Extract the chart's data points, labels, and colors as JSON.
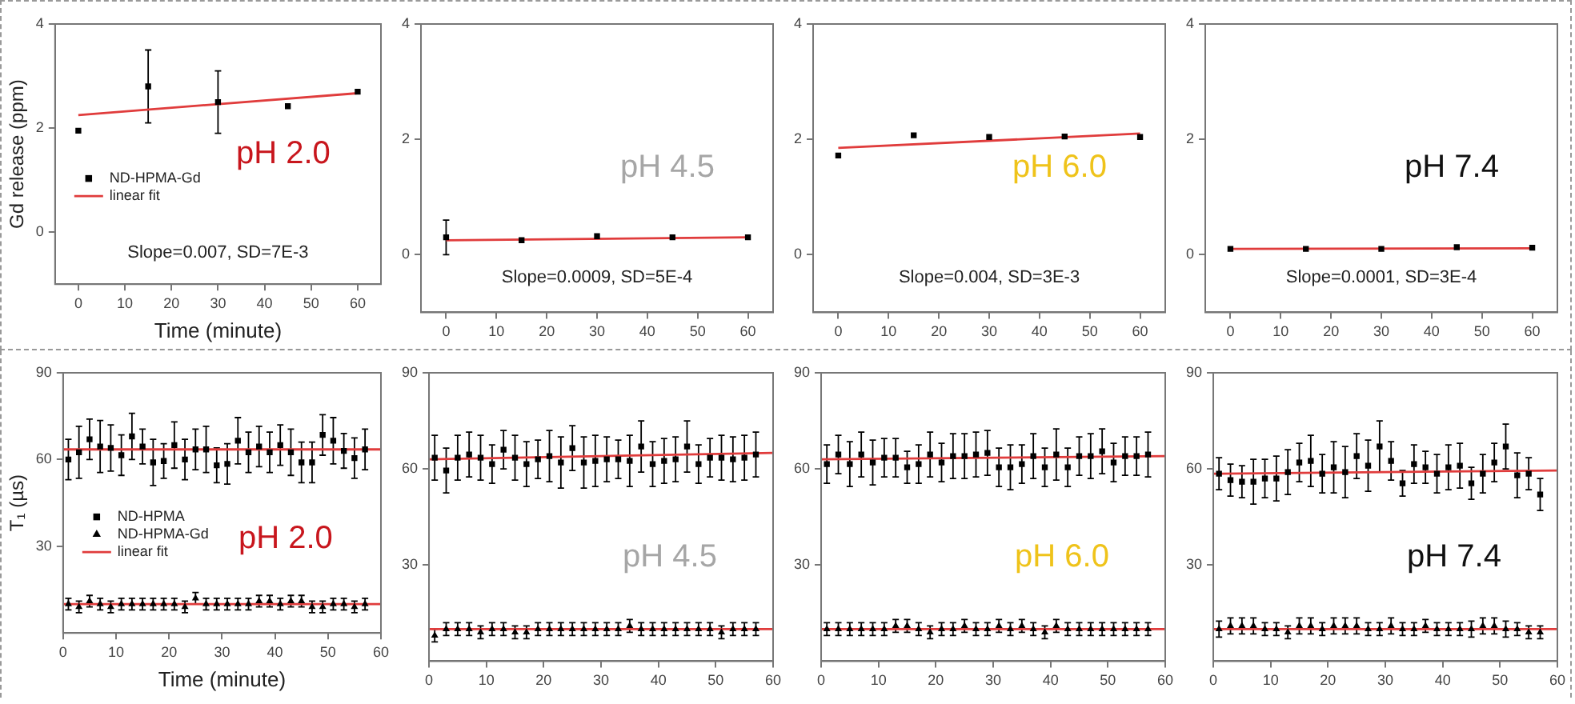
{
  "chart_data": [
    {
      "type": "scatter",
      "xlabel": "Time (minute)",
      "ylabel": "Gd release (ppm)",
      "annotations": [
        "pH 2.0",
        "Slope=0.007, SD=7E-3"
      ],
      "xlim": [
        -5,
        65
      ],
      "xticks": [
        0,
        10,
        20,
        30,
        40,
        50,
        60
      ],
      "ylim": [
        -1,
        4
      ],
      "yticks": [
        0,
        2,
        4
      ],
      "legend": "center left",
      "series": [
        {
          "name": "ND-HPMA-Gd",
          "type": "scatter",
          "marker": "square",
          "color": "#000000",
          "x": [
            0,
            15,
            30,
            45,
            60
          ],
          "values": [
            1.95,
            2.8,
            2.5,
            2.42,
            2.7
          ],
          "errors": [
            null,
            0.7,
            0.6,
            null,
            null
          ]
        },
        {
          "name": "linear fit",
          "type": "line",
          "color": "#e03c3c",
          "x": [
            0,
            60
          ],
          "values": [
            2.25,
            2.67
          ]
        }
      ]
    },
    {
      "type": "scatter",
      "annotations": [
        "pH 4.5",
        "Slope=0.0009, SD=5E-4"
      ],
      "xlim": [
        -5,
        65
      ],
      "xticks": [
        0,
        10,
        20,
        30,
        40,
        50,
        60
      ],
      "ylim": [
        -1,
        4
      ],
      "yticks": [
        0,
        2,
        4
      ],
      "series": [
        {
          "type": "scatter",
          "marker": "square",
          "color": "#000000",
          "x": [
            0,
            15,
            30,
            45,
            60
          ],
          "values": [
            0.3,
            0.25,
            0.32,
            0.3,
            0.3
          ],
          "errors": [
            0.3,
            null,
            null,
            null,
            null
          ]
        },
        {
          "type": "line",
          "color": "#e03c3c",
          "x": [
            0,
            60
          ],
          "values": [
            0.25,
            0.3
          ]
        }
      ]
    },
    {
      "type": "scatter",
      "annotations": [
        "pH 6.0",
        "Slope=0.004, SD=3E-3"
      ],
      "xlim": [
        -5,
        65
      ],
      "xticks": [
        0,
        10,
        20,
        30,
        40,
        50,
        60
      ],
      "ylim": [
        -1,
        4
      ],
      "yticks": [
        0,
        2,
        4
      ],
      "series": [
        {
          "type": "scatter",
          "marker": "square",
          "color": "#000000",
          "x": [
            0,
            15,
            30,
            45,
            60
          ],
          "values": [
            1.72,
            2.07,
            2.04,
            2.05,
            2.04
          ]
        },
        {
          "type": "line",
          "color": "#e03c3c",
          "x": [
            0,
            60
          ],
          "values": [
            1.85,
            2.1
          ]
        }
      ]
    },
    {
      "type": "scatter",
      "annotations": [
        "pH 7.4",
        "Slope=0.0001, SD=3E-4"
      ],
      "xlim": [
        -5,
        65
      ],
      "xticks": [
        0,
        10,
        20,
        30,
        40,
        50,
        60
      ],
      "ylim": [
        -1,
        4
      ],
      "yticks": [
        0,
        2,
        4
      ],
      "series": [
        {
          "type": "scatter",
          "marker": "square",
          "color": "#000000",
          "x": [
            0,
            15,
            30,
            45,
            60
          ],
          "values": [
            0.1,
            0.1,
            0.1,
            0.13,
            0.12
          ]
        },
        {
          "type": "line",
          "color": "#e03c3c",
          "x": [
            0,
            60
          ],
          "values": [
            0.1,
            0.11
          ]
        }
      ]
    },
    {
      "type": "scatter",
      "xlabel": "Time (minute)",
      "ylabel": "T₁ (µs)",
      "annotations": [
        "pH 2.0"
      ],
      "xlim": [
        0,
        60
      ],
      "xticks": [
        0,
        10,
        20,
        30,
        40,
        50,
        60
      ],
      "ylim": [
        0,
        90
      ],
      "yticks": [
        30,
        60,
        90
      ],
      "legend": "center left",
      "x": [
        1,
        3,
        5,
        7,
        9,
        11,
        13,
        15,
        17,
        19,
        21,
        23,
        25,
        27,
        29,
        31,
        33,
        35,
        37,
        39,
        41,
        43,
        45,
        47,
        49,
        51,
        53,
        55,
        57
      ],
      "series": [
        {
          "name": "ND-HPMA",
          "type": "scatter",
          "marker": "square",
          "color": "#000000",
          "values": [
            60,
            62.5,
            67,
            64.5,
            64,
            61.5,
            68,
            64.5,
            59,
            59.5,
            65,
            60,
            63.5,
            63.5,
            58,
            58.5,
            66.5,
            62.5,
            64.5,
            62.5,
            65,
            62.5,
            59,
            59,
            68.5,
            66.5,
            63,
            60.5,
            63.5
          ],
          "errors": [
            7,
            9,
            7,
            9,
            8,
            7,
            8,
            6,
            8,
            6,
            8,
            7,
            7,
            8,
            6,
            7,
            8,
            7,
            7,
            7,
            7,
            8,
            7,
            7,
            7,
            8,
            6,
            7,
            7
          ]
        },
        {
          "name": "ND-HPMA-Gd",
          "type": "scatter",
          "marker": "triangle",
          "color": "#000000",
          "values": [
            10,
            9,
            11,
            10,
            9,
            10,
            10,
            10,
            10,
            10,
            10,
            9,
            12,
            10,
            10,
            10,
            10,
            10,
            11,
            11,
            10,
            11,
            11,
            9,
            9,
            10,
            10,
            9,
            10
          ],
          "errors": [
            2,
            2,
            2,
            2,
            2,
            2,
            2,
            2,
            2,
            2,
            2,
            2,
            2,
            2,
            2,
            2,
            2,
            2,
            2,
            2,
            2,
            2,
            2,
            2,
            2,
            2,
            2,
            2,
            2
          ]
        },
        {
          "name": "linear fit",
          "type": "line",
          "color": "#e03c3c",
          "x": [
            0,
            60
          ],
          "values": [
            63.5,
            63.5
          ]
        },
        {
          "type": "line",
          "color": "#e03c3c",
          "x": [
            0,
            60
          ],
          "values": [
            10,
            10
          ]
        }
      ]
    },
    {
      "type": "scatter",
      "annotations": [
        "pH 4.5"
      ],
      "xlim": [
        0,
        60
      ],
      "xticks": [
        0,
        10,
        20,
        30,
        40,
        50,
        60
      ],
      "ylim": [
        0,
        90
      ],
      "yticks": [
        30,
        60,
        90
      ],
      "x": [
        1,
        3,
        5,
        7,
        9,
        11,
        13,
        15,
        17,
        19,
        21,
        23,
        25,
        27,
        29,
        31,
        33,
        35,
        37,
        39,
        41,
        43,
        45,
        47,
        49,
        51,
        53,
        55,
        57
      ],
      "series": [
        {
          "type": "scatter",
          "marker": "square",
          "color": "#000000",
          "values": [
            63.5,
            59.5,
            63.5,
            64.5,
            63.5,
            61.5,
            66,
            63.5,
            61.5,
            63,
            64,
            62,
            66.5,
            62,
            62.5,
            63,
            63,
            62.5,
            67,
            61.5,
            62.5,
            63,
            67,
            61.5,
            63.5,
            63.5,
            63,
            63.5,
            64.5
          ],
          "errors": [
            7,
            7,
            7,
            7,
            7,
            6,
            6,
            7,
            7,
            6,
            8,
            8,
            7,
            8,
            8,
            7,
            6,
            8,
            8,
            7,
            7,
            7,
            8,
            6,
            6,
            7,
            7,
            7,
            7
          ]
        },
        {
          "type": "scatter",
          "marker": "triangle",
          "color": "#000000",
          "values": [
            8,
            10,
            10,
            10,
            9,
            10,
            10,
            9,
            9,
            10,
            10,
            10,
            10,
            10,
            10,
            10,
            10,
            11,
            10,
            10,
            10,
            10,
            10,
            10,
            10,
            9,
            10,
            10,
            10
          ],
          "errors": [
            2,
            2,
            2,
            2,
            2,
            2,
            2,
            2,
            2,
            2,
            2,
            2,
            2,
            2,
            2,
            2,
            2,
            2,
            2,
            2,
            2,
            2,
            2,
            2,
            2,
            2,
            2,
            2,
            2
          ]
        },
        {
          "type": "line",
          "color": "#e03c3c",
          "x": [
            0,
            60
          ],
          "values": [
            63,
            65
          ]
        },
        {
          "type": "line",
          "color": "#e03c3c",
          "x": [
            0,
            60
          ],
          "values": [
            10,
            10
          ]
        }
      ]
    },
    {
      "type": "scatter",
      "annotations": [
        "pH 6.0"
      ],
      "xlim": [
        0,
        60
      ],
      "xticks": [
        0,
        10,
        20,
        30,
        40,
        50,
        60
      ],
      "ylim": [
        0,
        90
      ],
      "yticks": [
        30,
        60,
        90
      ],
      "x": [
        1,
        3,
        5,
        7,
        9,
        11,
        13,
        15,
        17,
        19,
        21,
        23,
        25,
        27,
        29,
        31,
        33,
        35,
        37,
        39,
        41,
        43,
        45,
        47,
        49,
        51,
        53,
        55,
        57
      ],
      "series": [
        {
          "type": "scatter",
          "marker": "square",
          "color": "#000000",
          "values": [
            61.5,
            64.5,
            61.5,
            64.5,
            62,
            63.5,
            63.5,
            60.5,
            61.5,
            64.5,
            62,
            64,
            64,
            64.5,
            65,
            60.5,
            60.5,
            61.5,
            64,
            60.5,
            64.5,
            60.5,
            64,
            64,
            65.5,
            62,
            64,
            64,
            64.5
          ],
          "errors": [
            6,
            6,
            7,
            7,
            7,
            6,
            6,
            5,
            6,
            7,
            6,
            7,
            7,
            7,
            7,
            6,
            7,
            6,
            7,
            6,
            8,
            6,
            6,
            7,
            7,
            6,
            6,
            6,
            7
          ]
        },
        {
          "type": "scatter",
          "marker": "triangle",
          "color": "#000000",
          "values": [
            10,
            10,
            10,
            10,
            10,
            10,
            11,
            11,
            10,
            9,
            10,
            10,
            11,
            10,
            10,
            11,
            10,
            11,
            10,
            9,
            11,
            10,
            10,
            10,
            10,
            10,
            10,
            10,
            10
          ],
          "errors": [
            2,
            2,
            2,
            2,
            2,
            2,
            2,
            2,
            2,
            2,
            2,
            2,
            2,
            2,
            2,
            2,
            2,
            2,
            2,
            2,
            2,
            2,
            2,
            2,
            2,
            2,
            2,
            2,
            2
          ]
        },
        {
          "type": "line",
          "color": "#e03c3c",
          "x": [
            0,
            60
          ],
          "values": [
            63,
            64
          ]
        },
        {
          "type": "line",
          "color": "#e03c3c",
          "x": [
            0,
            60
          ],
          "values": [
            10,
            10
          ]
        }
      ]
    },
    {
      "type": "scatter",
      "annotations": [
        "pH 7.4"
      ],
      "xlim": [
        0,
        60
      ],
      "xticks": [
        0,
        10,
        20,
        30,
        40,
        50,
        60
      ],
      "ylim": [
        0,
        90
      ],
      "yticks": [
        30,
        60,
        90
      ],
      "x": [
        1,
        3,
        5,
        7,
        9,
        11,
        13,
        15,
        17,
        19,
        21,
        23,
        25,
        27,
        29,
        31,
        33,
        35,
        37,
        39,
        41,
        43,
        45,
        47,
        49,
        51,
        53,
        55,
        57
      ],
      "series": [
        {
          "type": "scatter",
          "marker": "square",
          "color": "#000000",
          "values": [
            58.5,
            56.5,
            56,
            56,
            57,
            57,
            59,
            62,
            62.5,
            58.5,
            60.5,
            59,
            64,
            61,
            67,
            62.5,
            55.5,
            61.5,
            60.5,
            58.5,
            60.5,
            61,
            55.5,
            58.5,
            62,
            67,
            58,
            58.5,
            52
          ],
          "errors": [
            5,
            5,
            5,
            7,
            6,
            7,
            7,
            6,
            8,
            6,
            8,
            8,
            7,
            8,
            8,
            6,
            4,
            6,
            5,
            6,
            7,
            7,
            5,
            6,
            6,
            7,
            7,
            5,
            5
          ]
        },
        {
          "type": "scatter",
          "marker": "triangle",
          "color": "#000000",
          "values": [
            10,
            11,
            11,
            11,
            10,
            10,
            9,
            11,
            11,
            10,
            11,
            11,
            11,
            10,
            10,
            11,
            10,
            10,
            11,
            10,
            10,
            10,
            10,
            11,
            11,
            10,
            10,
            9,
            9
          ],
          "errors": [
            2.5,
            2.5,
            2.5,
            2.5,
            2,
            2,
            2,
            2.5,
            2.5,
            2,
            2.5,
            2.5,
            2.5,
            2,
            2,
            2.5,
            2,
            2,
            2,
            2,
            2,
            2,
            2.5,
            2.5,
            2.5,
            2.5,
            2,
            2,
            2
          ]
        },
        {
          "type": "line",
          "color": "#e03c3c",
          "x": [
            0,
            60
          ],
          "values": [
            58.5,
            59.5
          ]
        },
        {
          "type": "line",
          "color": "#e03c3c",
          "x": [
            0,
            60
          ],
          "values": [
            10,
            10
          ]
        }
      ]
    }
  ]
}
